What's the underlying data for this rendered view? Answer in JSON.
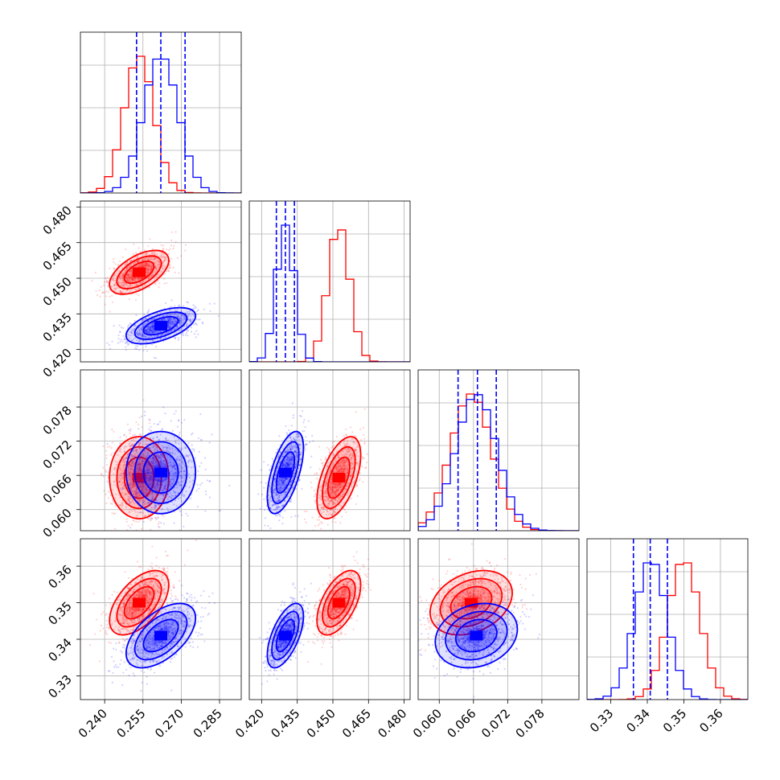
{
  "chart_data": {
    "type": "corner",
    "grid": true,
    "params": [
      {
        "range": [
          0.2305,
          0.2935
        ],
        "ticks": [
          "0.240",
          "0.255",
          "0.270",
          "0.285"
        ]
      },
      {
        "range": [
          0.4148,
          0.4825
        ],
        "ticks": [
          "0.420",
          "0.435",
          "0.450",
          "0.465",
          "0.480"
        ]
      },
      {
        "range": [
          0.0563,
          0.0845
        ],
        "ticks": [
          "0.060",
          "0.066",
          "0.072",
          "0.078"
        ]
      },
      {
        "range": [
          0.3235,
          0.3675
        ],
        "ticks": [
          "0.33",
          "0.34",
          "0.35",
          "0.36"
        ]
      }
    ],
    "series": [
      {
        "color": "#ff0000",
        "mean": [
          0.2535,
          0.4525,
          0.0656,
          0.35
        ],
        "sd": [
          0.0058,
          0.0046,
          0.0036,
          0.0044
        ],
        "corr": [
          [
            0,
            1,
            0.55
          ],
          [
            0,
            2,
            0.0
          ],
          [
            0,
            3,
            0.55
          ],
          [
            1,
            2,
            0.55
          ],
          [
            1,
            3,
            0.55
          ],
          [
            2,
            3,
            0.3
          ]
        ]
      },
      {
        "color": "#0000ff",
        "mean": [
          0.262,
          0.43,
          0.0665,
          0.341
        ],
        "sd": [
          0.0068,
          0.0038,
          0.0036,
          0.0044
        ],
        "corr": [
          [
            0,
            1,
            0.55
          ],
          [
            0,
            2,
            0.0
          ],
          [
            0,
            3,
            0.55
          ],
          [
            1,
            2,
            0.6
          ],
          [
            1,
            3,
            0.6
          ],
          [
            2,
            3,
            0.2
          ]
        ]
      }
    ],
    "quantile_lines": {
      "color": "#0000ff",
      "values": [
        [
          0.2525,
          0.262,
          0.2715
        ],
        [
          0.4262,
          0.43,
          0.4338
        ],
        [
          0.0633,
          0.0667,
          0.07
        ],
        [
          0.3362,
          0.3408,
          0.3455
        ]
      ]
    }
  }
}
